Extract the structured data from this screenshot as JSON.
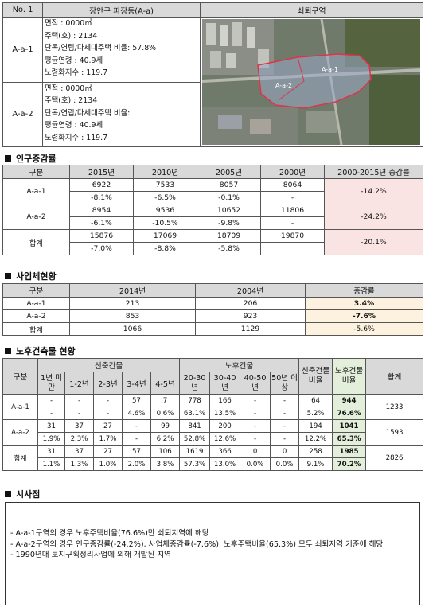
{
  "top": {
    "no_label": "No. 1",
    "district_title": "장안구 파장동(A-a)",
    "map_title": "쇠퇴구역",
    "zones": [
      {
        "code": "A-a-1",
        "lines": [
          "면적 : 0000㎡",
          "주택(호) : 2134",
          "단독/연립/다세대주택 비율: 57.8%",
          "평균연령 : 40.9세",
          "노령화지수 : 119.7"
        ]
      },
      {
        "code": "A-a-2",
        "lines": [
          "면적 : 0000㎡",
          "주택(호) : 2134",
          "단독/연립/다세대주택 비율:",
          "평균연령 : 40.9세",
          "노령화지수 : 119.7"
        ]
      }
    ],
    "map_labels": [
      "A-a-1",
      "A-a-2"
    ]
  },
  "population": {
    "section_title": "인구증감률",
    "headers": [
      "구분",
      "2015년",
      "2010년",
      "2005년",
      "2000년",
      "2000-2015년 증감률"
    ],
    "rows": [
      {
        "label": "A-a-1",
        "values": [
          "6922",
          "7533",
          "8057",
          "8064"
        ],
        "rates": [
          "-8.1%",
          "-6.5%",
          "-0.1%",
          "-"
        ],
        "change": "-14.2%"
      },
      {
        "label": "A-a-2",
        "values": [
          "8954",
          "9536",
          "10652",
          "11806"
        ],
        "rates": [
          "-6.1%",
          "-10.5%",
          "-9.8%",
          "-"
        ],
        "change": "-24.2%"
      },
      {
        "label": "합계",
        "values": [
          "15876",
          "17069",
          "18709",
          "19870"
        ],
        "rates": [
          "-7.0%",
          "-8.8%",
          "-5.8%",
          ""
        ],
        "change": "-20.1%"
      }
    ]
  },
  "business": {
    "section_title": "사업체현황",
    "headers": [
      "구분",
      "2014년",
      "2004년",
      "증감률"
    ],
    "rows": [
      {
        "label": "A-a-1",
        "v2014": "213",
        "v2004": "206",
        "change": "3.4%"
      },
      {
        "label": "A-a-2",
        "v2014": "853",
        "v2004": "923",
        "change": "-7.6%"
      },
      {
        "label": "합계",
        "v2014": "1066",
        "v2004": "1129",
        "change": "-5.6%"
      }
    ]
  },
  "buildings": {
    "section_title": "노후건축물 현황",
    "header_label": "구분",
    "new_group": "신축건물",
    "old_group": "노후건물",
    "sub_headers": [
      "1년 미만",
      "1-2년",
      "2-3년",
      "3-4년",
      "4-5년",
      "20-30 년",
      "30-40 년",
      "40-50 년",
      "50년 이상"
    ],
    "new_ratio": "신축건물비율",
    "old_ratio": "노후건물비율",
    "total": "합계",
    "rows": [
      {
        "label": "A-a-1",
        "counts": [
          "-",
          "-",
          "-",
          "57",
          "7",
          "778",
          "166",
          "-",
          "-",
          "64",
          "944",
          "1233"
        ],
        "percents": [
          "-",
          "-",
          "-",
          "4.6%",
          "0.6%",
          "63.1%",
          "13.5%",
          "-",
          "-",
          "5.2%",
          "76.6%",
          ""
        ]
      },
      {
        "label": "A-a-2",
        "counts": [
          "31",
          "37",
          "27",
          "-",
          "99",
          "841",
          "200",
          "-",
          "-",
          "194",
          "1041",
          "1593"
        ],
        "percents": [
          "1.9%",
          "2.3%",
          "1.7%",
          "-",
          "6.2%",
          "52.8%",
          "12.6%",
          "-",
          "-",
          "12.2%",
          "65.3%",
          ""
        ]
      },
      {
        "label": "합계",
        "counts": [
          "31",
          "37",
          "27",
          "57",
          "106",
          "1619",
          "366",
          "0",
          "0",
          "258",
          "1985",
          "2826"
        ],
        "percents": [
          "1.1%",
          "1.3%",
          "1.0%",
          "2.0%",
          "3.8%",
          "57.3%",
          "13.0%",
          "0.0%",
          "0.0%",
          "9.1%",
          "70.2%",
          ""
        ]
      }
    ]
  },
  "implications": {
    "section_title": "시사점",
    "items": [
      "- A-a-1구역의 경우 노후주택비율(76.6%)만 쇠퇴지역에 해당",
      "- A-a-2구역의 경우 인구증감률(-24.2%), 사업체증감률(-7.6%), 노후주택비율(65.3%) 모두 쇠퇴지역 기준에 해당",
      "- 1990년대 토지구획정리사업에 의해 개발된 지역"
    ]
  },
  "colors": {
    "pink": "#f9e3e3",
    "cream": "#fdf2df",
    "green": "#e3efda",
    "header_gray": "#d9d9d9",
    "zone_outline": "#e0334a"
  }
}
